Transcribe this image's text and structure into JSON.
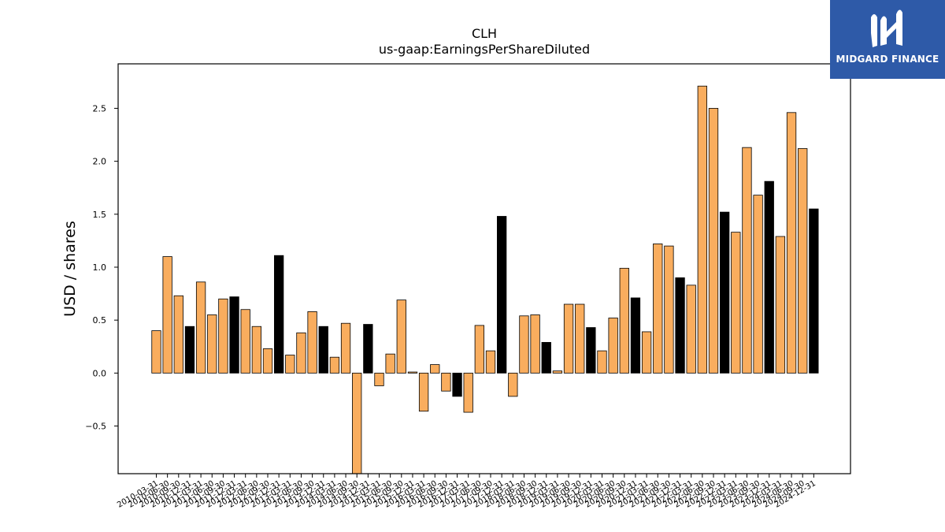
{
  "chart_data": {
    "type": "bar",
    "title": "CLH",
    "subtitle": "us-gaap:EarningsPerShareDiluted",
    "xlabel": "",
    "ylabel": "USD / shares",
    "ylim": [
      -0.95,
      2.92
    ],
    "yticks": [
      -0.5,
      0.0,
      0.5,
      1.0,
      1.5,
      2.0,
      2.5
    ],
    "ytick_labels": [
      "−0.5",
      "0.0",
      "0.5",
      "1.0",
      "1.5",
      "2.0",
      "2.5"
    ],
    "grid": false,
    "colors": {
      "quarter": "#f9ad5e",
      "annual": "#000000",
      "edge": "#000000"
    },
    "categories": [
      "2010-03-31",
      "2010-06-30",
      "2010-09-30",
      "2010-12-31",
      "2011-03-31",
      "2011-06-30",
      "2011-09-30",
      "2011-12-31",
      "2012-03-31",
      "2012-06-30",
      "2012-09-30",
      "2012-12-31",
      "2013-03-31",
      "2013-06-30",
      "2013-09-30",
      "2013-12-31",
      "2014-03-31",
      "2014-06-30",
      "2014-09-30",
      "2014-12-31",
      "2015-03-31",
      "2015-06-30",
      "2015-09-30",
      "2015-12-31",
      "2016-03-31",
      "2016-06-30",
      "2016-09-30",
      "2016-12-31",
      "2017-03-31",
      "2017-06-30",
      "2017-09-30",
      "2017-12-31",
      "2018-03-31",
      "2018-06-30",
      "2018-09-30",
      "2018-12-31",
      "2019-03-31",
      "2019-06-30",
      "2019-09-30",
      "2019-12-31",
      "2020-03-31",
      "2020-06-30",
      "2020-09-30",
      "2020-12-31",
      "2021-03-31",
      "2021-06-30",
      "2021-09-30",
      "2021-12-31",
      "2022-03-31",
      "2022-06-30",
      "2022-09-30",
      "2022-12-31",
      "2023-03-31",
      "2023-06-30",
      "2023-09-30",
      "2023-12-31",
      "2024-03-31",
      "2024-06-30",
      "2024-09-30",
      "2024-12-31"
    ],
    "values": [
      0.4,
      1.1,
      0.73,
      0.44,
      0.86,
      0.55,
      0.7,
      0.72,
      0.6,
      0.44,
      0.23,
      1.11,
      0.17,
      0.38,
      0.58,
      0.44,
      0.15,
      0.47,
      -1.0,
      0.46,
      -0.12,
      0.18,
      0.69,
      0.01,
      -0.36,
      0.08,
      -0.17,
      -0.22,
      -0.37,
      0.45,
      0.21,
      1.48,
      -0.22,
      0.54,
      0.55,
      0.29,
      0.02,
      0.65,
      0.65,
      0.43,
      0.21,
      0.52,
      0.99,
      0.71,
      0.39,
      1.22,
      1.2,
      0.9,
      0.83,
      2.71,
      2.5,
      1.52,
      1.33,
      2.13,
      1.68,
      1.81,
      1.29,
      2.46,
      2.12,
      1.55
    ],
    "annual": [
      false,
      false,
      false,
      true,
      false,
      false,
      false,
      true,
      false,
      false,
      false,
      true,
      false,
      false,
      false,
      true,
      false,
      false,
      false,
      true,
      false,
      false,
      false,
      false,
      false,
      false,
      false,
      true,
      false,
      false,
      false,
      true,
      false,
      false,
      false,
      true,
      false,
      false,
      false,
      true,
      false,
      false,
      false,
      true,
      false,
      false,
      false,
      true,
      false,
      false,
      false,
      true,
      false,
      false,
      false,
      true,
      false,
      false,
      false,
      true
    ]
  },
  "logo": {
    "text": "MIDGARD FINANCE"
  }
}
